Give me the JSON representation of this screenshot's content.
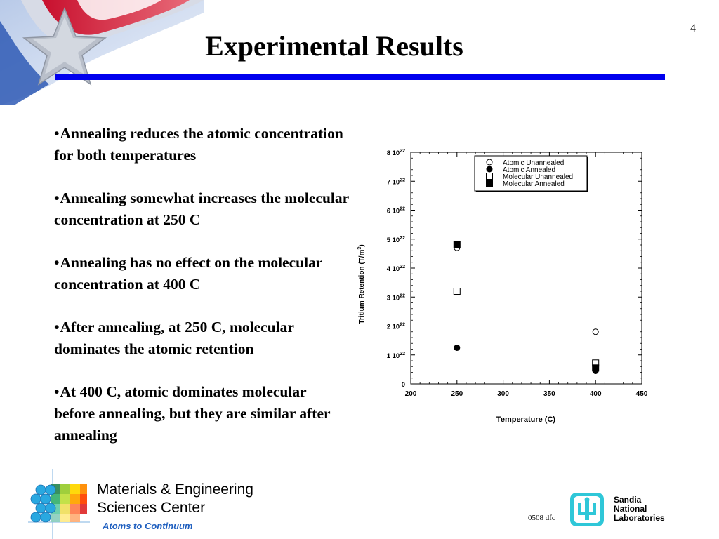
{
  "slide": {
    "page_number": "4",
    "title": "Experimental Results",
    "accent_color": "#0000ee"
  },
  "bullets": [
    "Annealing reduces the atomic concentration for both temperatures",
    "Annealing somewhat increases the molecular concentration at 250 C",
    "Annealing has no effect on the molecular concentration at 400 C",
    "After annealing, at 250 C, molecular dominates the atomic retention",
    "At 400 C, atomic dominates molecular before annealing, but they are similar after annealing"
  ],
  "bullet_marker": "•",
  "chart_data": {
    "type": "scatter",
    "xlabel": "Temperature (C)",
    "ylabel": "Tritium Retention (T/m",
    "ylabel_superscript": "3",
    "ylabel_close": ")",
    "xlim": [
      200,
      450
    ],
    "ylim": [
      0,
      8
    ],
    "y_scale_note": "values in units of 10^22",
    "x_ticks": [
      "200",
      "250",
      "300",
      "350",
      "400",
      "450"
    ],
    "x_tick_values": [
      200,
      250,
      300,
      350,
      400,
      450
    ],
    "y_ticks": [
      {
        "value": 0,
        "mant": "0",
        "exp": ""
      },
      {
        "value": 1,
        "mant": "1 10",
        "exp": "22"
      },
      {
        "value": 2,
        "mant": "2 10",
        "exp": "22"
      },
      {
        "value": 3,
        "mant": "3 10",
        "exp": "22"
      },
      {
        "value": 4,
        "mant": "4 10",
        "exp": "22"
      },
      {
        "value": 5,
        "mant": "5 10",
        "exp": "22"
      },
      {
        "value": 6,
        "mant": "6 10",
        "exp": "22"
      },
      {
        "value": 7,
        "mant": "7 10",
        "exp": "22"
      },
      {
        "value": 8,
        "mant": "8 10",
        "exp": "22"
      }
    ],
    "grid": false,
    "legend_position": "top-right",
    "series": [
      {
        "name": "Atomic Unannealed",
        "marker": "circle-open",
        "x": [
          250,
          400
        ],
        "y": [
          4.7,
          1.8
        ]
      },
      {
        "name": "Atomic Annealed",
        "marker": "circle-filled",
        "x": [
          250,
          400
        ],
        "y": [
          1.25,
          0.45
        ]
      },
      {
        "name": "Molecular Unannealed",
        "marker": "square-open",
        "x": [
          250,
          400
        ],
        "y": [
          3.2,
          0.72
        ]
      },
      {
        "name": "Molecular  Annealed",
        "marker": "square-filled",
        "x": [
          250,
          400
        ],
        "y": [
          4.8,
          0.55
        ]
      }
    ]
  },
  "footer": {
    "org_line1": "Materials & Engineering",
    "org_line2": "Sciences Center",
    "tagline": "Atoms to Continuum",
    "doc_code": "0508 dfc",
    "sandia_line1": "Sandia",
    "sandia_line2": "National",
    "sandia_line3": "Laboratories",
    "tagline_color": "#1f5fbf",
    "sandia_logo_color": "#2fc7d8"
  }
}
